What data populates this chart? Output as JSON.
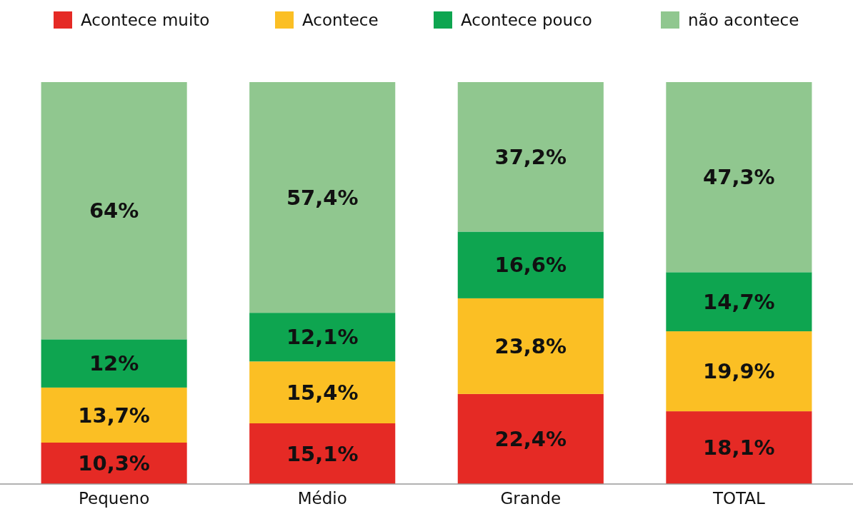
{
  "chart_data": {
    "type": "bar",
    "stacked": true,
    "categories": [
      "Pequeno",
      "Médio",
      "Grande",
      "TOTAL"
    ],
    "series": [
      {
        "name": "Acontece muito",
        "color": "#e52a25",
        "values": [
          10.3,
          15.1,
          22.4,
          18.1
        ],
        "value_labels": [
          "10,3%",
          "15,1%",
          "22,4%",
          "18,1%"
        ]
      },
      {
        "name": "Acontece",
        "color": "#fbbf24",
        "values": [
          13.7,
          15.4,
          23.8,
          19.9
        ],
        "value_labels": [
          "13,7%",
          "15,4%",
          "23,8%",
          "19,9%"
        ]
      },
      {
        "name": "Acontece pouco",
        "color": "#0ea550",
        "values": [
          12,
          12.1,
          16.6,
          14.7
        ],
        "value_labels": [
          "12%",
          "12,1%",
          "16,6%",
          "14,7%"
        ]
      },
      {
        "name": "não acontece",
        "color": "#90c78f",
        "values": [
          64,
          57.4,
          37.2,
          47.3
        ],
        "value_labels": [
          "64%",
          "57,4%",
          "37,2%",
          "47,3%"
        ]
      }
    ],
    "ylim": [
      0,
      100
    ],
    "legend": "top",
    "grid": false
  }
}
